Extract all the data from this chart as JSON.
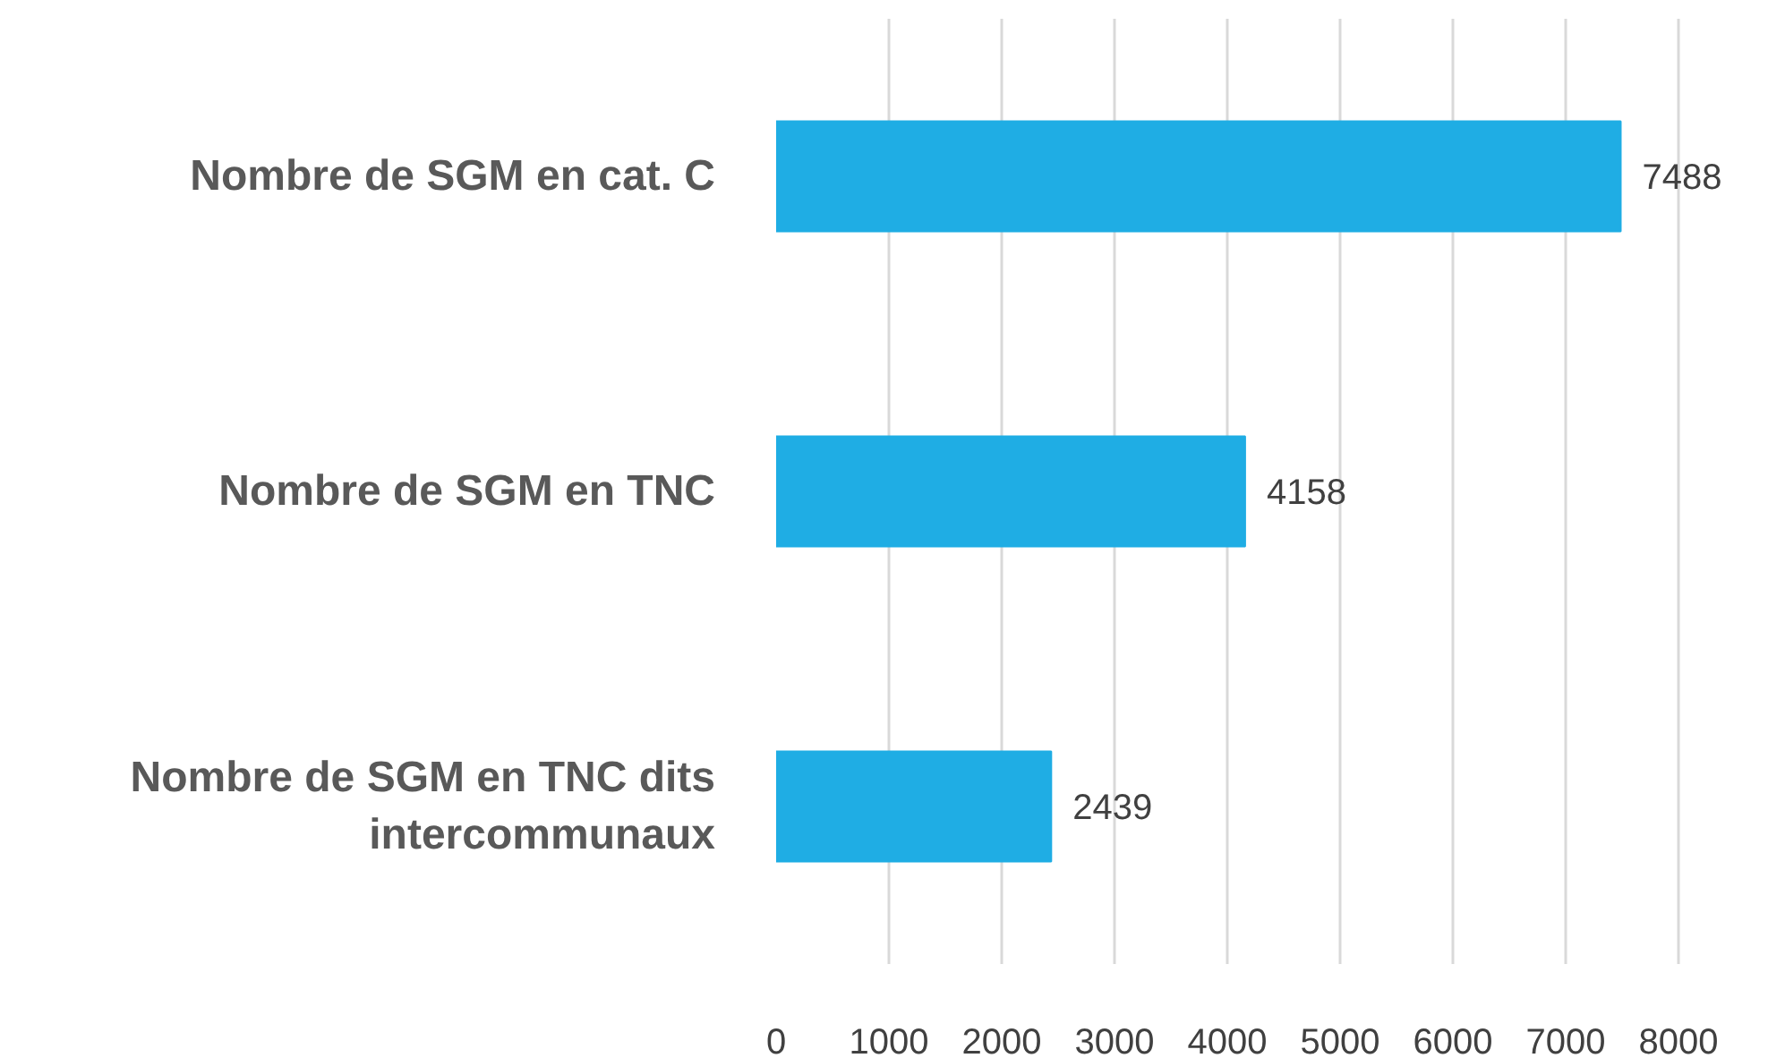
{
  "chart_data": {
    "type": "bar",
    "orientation": "horizontal",
    "categories": [
      "Nombre de SGM en cat. C",
      "Nombre de SGM en TNC",
      "Nombre de SGM en TNC dits intercommunaux"
    ],
    "values": [
      7488,
      4158,
      2439
    ],
    "color": "#1fade4",
    "xlim": [
      0,
      8000
    ],
    "xticks": [
      0,
      1000,
      2000,
      3000,
      4000,
      5000,
      6000,
      7000,
      8000
    ],
    "grid": "x",
    "data_labels": true
  }
}
